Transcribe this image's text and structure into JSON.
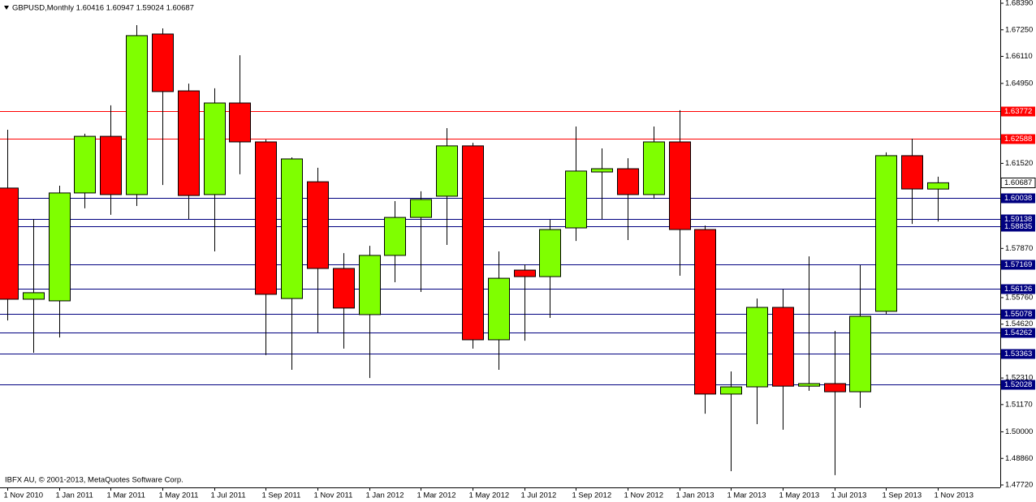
{
  "chart_data": {
    "type": "candlestick",
    "title": "GBPUSD,Monthly  1.60416 1.60947 1.59024 1.60687",
    "annotation": "IBFX AU, © 2001-2013, MetaQuotes Software Corp.",
    "categories": [
      "1 Nov 2010",
      null,
      "1 Jan 2011",
      null,
      "1 Mar 2011",
      null,
      "1 May 2011",
      null,
      "1 Jul 2011",
      null,
      "1 Sep 2011",
      null,
      "1 Nov 2011",
      null,
      "1 Jan 2012",
      null,
      "1 Mar 2012",
      null,
      "1 May 2012",
      null,
      "1 Jul 2012",
      null,
      "1 Sep 2012",
      null,
      "1 Nov 2012",
      null,
      "1 Jan 2013",
      null,
      "1 Mar 2013",
      null,
      "1 May 2013",
      null,
      "1 Jul 2013",
      null,
      "1 Sep 2013",
      null,
      "1 Nov 2013"
    ],
    "open": [
      1.6046,
      1.5569,
      1.5562,
      1.6025,
      1.6268,
      1.6018,
      1.6707,
      1.6463,
      1.6018,
      1.6411,
      1.6244,
      1.5572,
      1.6073,
      1.5701,
      1.5503,
      1.5757,
      1.592,
      1.6011,
      1.6227,
      1.5395,
      1.5694,
      1.5666,
      1.5875,
      1.6115,
      1.6129,
      1.6018,
      1.6244,
      1.5868,
      1.5162,
      1.5193,
      1.5534,
      1.5196,
      1.5207,
      1.5172,
      1.5517,
      1.6185,
      1.60416
    ],
    "high": [
      1.6296,
      1.5913,
      1.6056,
      1.6279,
      1.6401,
      1.6745,
      1.6731,
      1.6494,
      1.6474,
      1.6616,
      1.6254,
      1.6178,
      1.6133,
      1.5767,
      1.5798,
      1.599,
      1.6032,
      1.6303,
      1.624,
      1.5774,
      1.5718,
      1.591,
      1.631,
      1.6216,
      1.6174,
      1.631,
      1.638,
      1.5885,
      1.5259,
      1.5572,
      1.5611,
      1.5753,
      1.5433,
      1.5715,
      1.6199,
      1.6258,
      1.60947
    ],
    "low": [
      1.5478,
      1.5339,
      1.5405,
      1.5959,
      1.5931,
      1.5969,
      1.6059,
      1.5913,
      1.5774,
      1.6105,
      1.5329,
      1.5266,
      1.5426,
      1.5357,
      1.5231,
      1.5642,
      1.56,
      1.5802,
      1.5357,
      1.5266,
      1.5391,
      1.5489,
      1.5819,
      1.5913,
      1.5823,
      1.6,
      1.567,
      1.5078,
      1.4831,
      1.5033,
      1.5009,
      1.5176,
      1.4814,
      1.5103,
      1.5503,
      1.5892,
      1.59024
    ],
    "close": [
      1.5569,
      1.5597,
      1.6025,
      1.6268,
      1.6018,
      1.67,
      1.646,
      1.6014,
      1.6411,
      1.6244,
      1.559,
      1.6171,
      1.5701,
      1.5531,
      1.5757,
      1.592,
      1.5997,
      1.6227,
      1.5395,
      1.5659,
      1.5666,
      1.5868,
      1.6119,
      1.6129,
      1.6018,
      1.6244,
      1.5868,
      1.5162,
      1.5193,
      1.5534,
      1.5196,
      1.5207,
      1.5172,
      1.5496,
      1.6185,
      1.6042,
      1.60687
    ],
    "up_color": "#7fff00",
    "down_color": "#ff0000",
    "ylim": [
      1.4772,
      1.6839
    ],
    "yticks": [
      {
        "value": 1.6839,
        "label": "1.68390"
      },
      {
        "value": 1.6725,
        "label": "1.67250"
      },
      {
        "value": 1.6611,
        "label": "1.66110"
      },
      {
        "value": 1.6495,
        "label": "1.64950"
      },
      {
        "value": 1.6152,
        "label": "1.61520"
      },
      {
        "value": 1.5787,
        "label": "1.57870"
      },
      {
        "value": 1.5576,
        "label": "1.55760"
      },
      {
        "value": 1.5462,
        "label": "1.54620"
      },
      {
        "value": 1.5231,
        "label": "1.52310"
      },
      {
        "value": 1.5117,
        "label": "1.51170"
      },
      {
        "value": 1.5,
        "label": "1.50000"
      },
      {
        "value": 1.4886,
        "label": "1.48860"
      },
      {
        "value": 1.4772,
        "label": "1.47720"
      }
    ],
    "levels": [
      {
        "value": 1.63772,
        "color": "#ff0000"
      },
      {
        "value": 1.62588,
        "color": "#ff0000"
      },
      {
        "value": 1.60038,
        "color": "#000080"
      },
      {
        "value": 1.59138,
        "color": "#000080"
      },
      {
        "value": 1.58835,
        "color": "#000080"
      },
      {
        "value": 1.57169,
        "color": "#000080"
      },
      {
        "value": 1.56126,
        "color": "#000080"
      },
      {
        "value": 1.55078,
        "color": "#000080"
      },
      {
        "value": 1.54262,
        "color": "#000080"
      },
      {
        "value": 1.53363,
        "color": "#000080"
      },
      {
        "value": 1.52028,
        "color": "#000080"
      }
    ],
    "current_price": 1.60687
  }
}
